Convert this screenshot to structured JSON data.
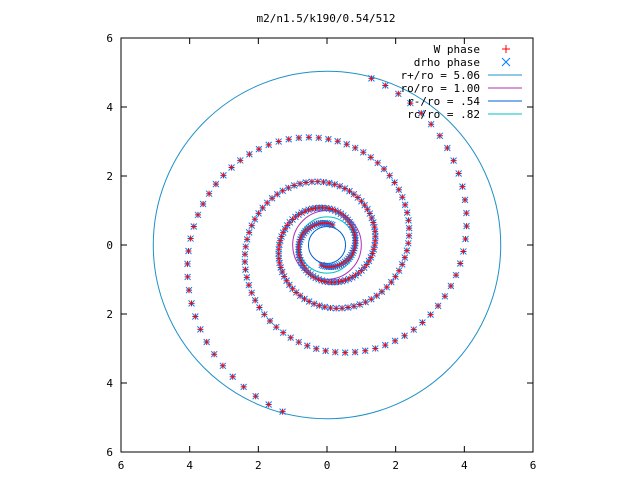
{
  "chart_data": {
    "type": "scatter",
    "title": "m2/n1.5/k190/0.54/512",
    "xlabel": "",
    "ylabel": "",
    "xlim": [
      -6,
      6
    ],
    "ylim": [
      -6,
      6
    ],
    "x_tick_labels": [
      "6",
      "4",
      "2",
      "0",
      "2",
      "4",
      "6"
    ],
    "y_tick_labels": [
      "6",
      "4",
      "2",
      "0",
      "2",
      "4",
      "6"
    ],
    "grid": false,
    "legend_position": "top-right",
    "series": [
      {
        "name": "W phase",
        "marker": "+",
        "color": "#ff0000",
        "description": "phase points along two-armed spiral (same locations as drho phase)"
      },
      {
        "name": "drho phase",
        "marker": "x",
        "color": "#0080ff"
      }
    ],
    "circles": [
      {
        "name": "r+/ro = 5.06",
        "radius": 5.06,
        "color": "#1e90c8"
      },
      {
        "name": "ro/ro = 1.00",
        "radius": 1.0,
        "color": "#b030b0"
      },
      {
        "name": "r-/ro = .54",
        "radius": 0.54,
        "color": "#0060d0"
      },
      {
        "name": "rc/ro = .82",
        "radius": 0.82,
        "color": "#00c0c0"
      }
    ],
    "spiral": {
      "arms": 2,
      "r_min": 0.6,
      "r_max": 5.0,
      "phase_offset_deg": 75
    }
  }
}
